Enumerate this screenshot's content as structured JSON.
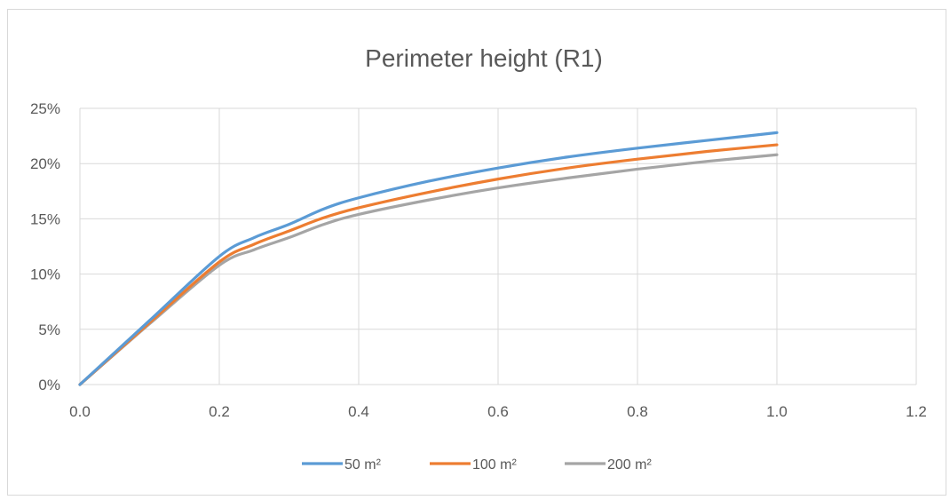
{
  "chart_data": {
    "type": "line",
    "title": "Perimeter height (R1)",
    "xlabel": "",
    "ylabel": "",
    "xlim": [
      0.0,
      1.2
    ],
    "ylim": [
      0,
      0.25
    ],
    "x_ticks": [
      "0.0",
      "0.2",
      "0.4",
      "0.6",
      "0.8",
      "1.0",
      "1.2"
    ],
    "y_ticks": [
      "0%",
      "5%",
      "10%",
      "15%",
      "20%",
      "25%"
    ],
    "grid": true,
    "legend_position": "bottom",
    "x": [
      0.0,
      0.1,
      0.2,
      0.25,
      0.3,
      0.35,
      0.4,
      0.5,
      0.6,
      0.7,
      0.8,
      0.9,
      1.0
    ],
    "series": [
      {
        "name": "50 m²",
        "color": "#5b9bd5",
        "values": [
          0.0,
          0.058,
          0.116,
          0.133,
          0.145,
          0.159,
          0.169,
          0.184,
          0.196,
          0.206,
          0.214,
          0.221,
          0.228
        ]
      },
      {
        "name": "100 m²",
        "color": "#ed7d31",
        "values": [
          0.0,
          0.056,
          0.111,
          0.127,
          0.139,
          0.151,
          0.16,
          0.174,
          0.186,
          0.196,
          0.204,
          0.211,
          0.217
        ]
      },
      {
        "name": "200 m²",
        "color": "#a5a5a5",
        "values": [
          0.0,
          0.055,
          0.108,
          0.122,
          0.133,
          0.145,
          0.154,
          0.167,
          0.178,
          0.187,
          0.195,
          0.202,
          0.208
        ]
      }
    ],
    "gridline_color": "#d9d9d9"
  }
}
